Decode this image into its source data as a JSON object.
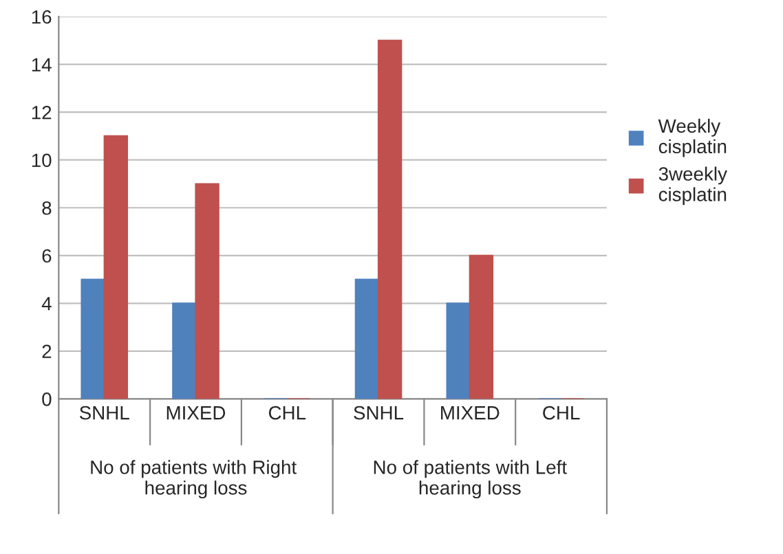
{
  "chart_data": {
    "type": "bar",
    "categories": [
      "SNHL",
      "MIXED",
      "CHL",
      "SNHL",
      "MIXED",
      "CHL"
    ],
    "series": [
      {
        "name": "Weekly cisplatin",
        "color": "#4f81bd",
        "values": [
          5,
          4,
          0,
          5,
          4,
          0
        ]
      },
      {
        "name": "3weekly cisplatin",
        "color": "#c0504d",
        "values": [
          11,
          9,
          0,
          15,
          6,
          0
        ]
      }
    ],
    "annotations": [
      "No of patients with Right  hearing loss",
      "No of patients with Left hearing loss"
    ],
    "ylim": [
      0,
      16
    ],
    "yticks": [
      0,
      2,
      4,
      6,
      8,
      10,
      12,
      14,
      16
    ],
    "grid": "y",
    "legend": "right"
  }
}
